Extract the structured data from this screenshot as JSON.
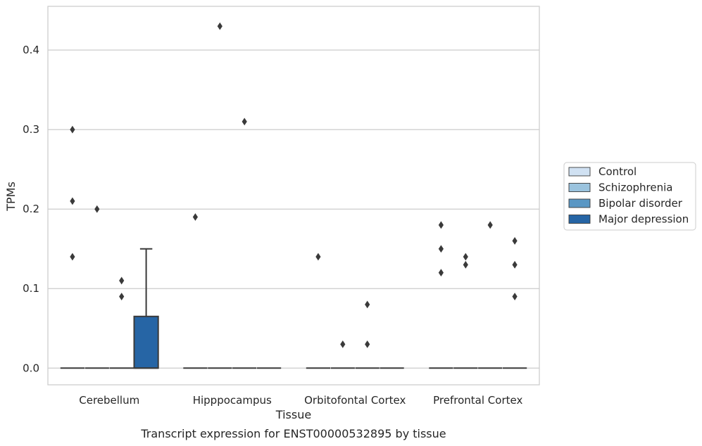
{
  "chart_data": {
    "type": "box",
    "title": "Transcript expression for ENST00000532895 by tissue",
    "xlabel": "Tissue",
    "ylabel": "TPMs",
    "ylim": [
      -0.021,
      0.455
    ],
    "yticks": [
      0.0,
      0.1,
      0.2,
      0.3,
      0.4
    ],
    "ytick_labels": [
      "0.0",
      "0.1",
      "0.2",
      "0.3",
      "0.4"
    ],
    "grid": "horizontal",
    "legend_position": "right",
    "categories": [
      "Cerebellum",
      "Hipppocampus",
      "Orbitofontal Cortex",
      "Prefrontal Cortex"
    ],
    "series": [
      {
        "name": "Control",
        "color": "#d0e1f2",
        "boxes": [
          {
            "q1": 0,
            "median": 0,
            "q3": 0,
            "whisker_low": 0,
            "whisker_high": 0,
            "outliers": [
              0.14,
              0.21,
              0.3
            ]
          },
          {
            "q1": 0,
            "median": 0,
            "q3": 0,
            "whisker_low": 0,
            "whisker_high": 0,
            "outliers": [
              0.19
            ]
          },
          {
            "q1": 0,
            "median": 0,
            "q3": 0,
            "whisker_low": 0,
            "whisker_high": 0,
            "outliers": [
              0.14
            ]
          },
          {
            "q1": 0,
            "median": 0,
            "q3": 0,
            "whisker_low": 0,
            "whisker_high": 0,
            "outliers": [
              0.12,
              0.15,
              0.18
            ]
          }
        ]
      },
      {
        "name": "Schizophrenia",
        "color": "#9ac3de",
        "boxes": [
          {
            "q1": 0,
            "median": 0,
            "q3": 0,
            "whisker_low": 0,
            "whisker_high": 0,
            "outliers": [
              0.2
            ]
          },
          {
            "q1": 0,
            "median": 0,
            "q3": 0,
            "whisker_low": 0,
            "whisker_high": 0,
            "outliers": [
              0.43
            ]
          },
          {
            "q1": 0,
            "median": 0,
            "q3": 0,
            "whisker_low": 0,
            "whisker_high": 0,
            "outliers": [
              0.03
            ]
          },
          {
            "q1": 0,
            "median": 0,
            "q3": 0,
            "whisker_low": 0,
            "whisker_high": 0,
            "outliers": [
              0.13,
              0.14
            ]
          }
        ]
      },
      {
        "name": "Bipolar disorder",
        "color": "#5a97c4",
        "boxes": [
          {
            "q1": 0,
            "median": 0,
            "q3": 0,
            "whisker_low": 0,
            "whisker_high": 0,
            "outliers": [
              0.09,
              0.11
            ]
          },
          {
            "q1": 0,
            "median": 0,
            "q3": 0,
            "whisker_low": 0,
            "whisker_high": 0,
            "outliers": [
              0.31
            ]
          },
          {
            "q1": 0,
            "median": 0,
            "q3": 0,
            "whisker_low": 0,
            "whisker_high": 0,
            "outliers": [
              0.03,
              0.08
            ]
          },
          {
            "q1": 0,
            "median": 0,
            "q3": 0,
            "whisker_low": 0,
            "whisker_high": 0,
            "outliers": [
              0.18
            ]
          }
        ]
      },
      {
        "name": "Major depression",
        "color": "#2665a5",
        "boxes": [
          {
            "q1": 0,
            "median": 0,
            "q3": 0.065,
            "whisker_low": 0,
            "whisker_high": 0.15,
            "outliers": []
          },
          {
            "q1": 0,
            "median": 0,
            "q3": 0,
            "whisker_low": 0,
            "whisker_high": 0,
            "outliers": []
          },
          {
            "q1": 0,
            "median": 0,
            "q3": 0,
            "whisker_low": 0,
            "whisker_high": 0,
            "outliers": []
          },
          {
            "q1": 0,
            "median": 0,
            "q3": 0,
            "whisker_low": 0,
            "whisker_high": 0,
            "outliers": [
              0.09,
              0.13,
              0.16
            ]
          }
        ]
      }
    ]
  },
  "colors": {
    "grid": "#cccccc",
    "axes_edge": "#cccccc",
    "box_edge": "#3a3a3a",
    "outlier": "#3a3a3a"
  }
}
